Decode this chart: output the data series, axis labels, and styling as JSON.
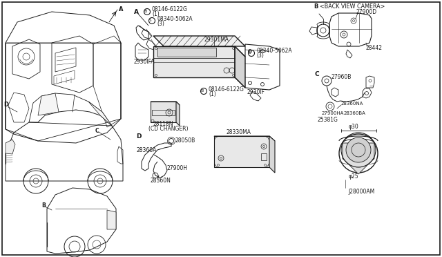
{
  "bg_color": "#ffffff",
  "line_color": "#1a1a1a",
  "text_color": "#1a1a1a",
  "fig_width": 6.4,
  "fig_height": 3.72,
  "dpi": 100,
  "labels": {
    "title_b_camera": "B <BACK VIEW CAMERA>",
    "A": "A",
    "B_top": "B",
    "B_bot": "B",
    "C": "C",
    "D": "D",
    "p08146_1": "08146-6122G",
    "p08146_1_qty": "(1)",
    "p08340_1": "08340-5062A",
    "p08340_1_qty": "(3)",
    "p29301MA": "29301MA",
    "p08340_2": "08340-5062A",
    "p08340_2_qty": "(3)",
    "p2930IFA": "2930IFA",
    "p28118N": "28118N",
    "cd_changer": "(CD CHANGER)",
    "p2930IF": "2930IF",
    "p08146_2": "08146-6122G",
    "p08146_2_qty": "(1)",
    "p27900D": "27900D",
    "p28442": "28442",
    "p27960B": "27960B",
    "p28360NA": "28360NA",
    "p27900HA": "27900HA",
    "p28360BA": "28360BA",
    "p25381G": "25381G",
    "p_phi30": "φ30",
    "p_phi25": "φ25",
    "p_J28000AM": "J28000AM",
    "p28050B": "28050B",
    "p28360A": "28360A",
    "p27900H": "27900H",
    "p28360N": "28360N",
    "p28330MA": "28330MA"
  }
}
